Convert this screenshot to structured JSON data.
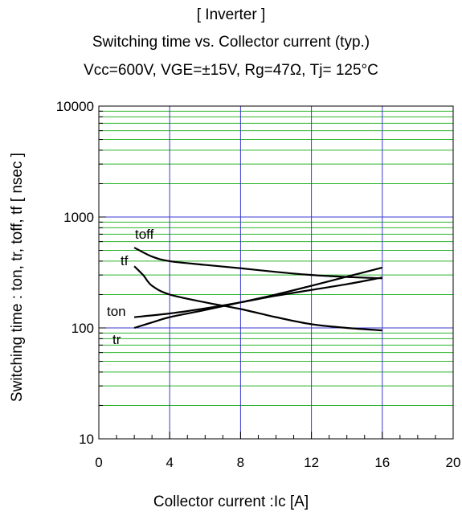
{
  "chart_data": {
    "type": "line",
    "header": "[ Inverter ]",
    "title": "Switching time  vs.  Collector current  (typ.)",
    "subtitle": "Vcc=600V, VGE=±15V, Rg=47Ω, Tj= 125°C",
    "xlabel": "Collector   current :Ic [A]",
    "ylabel": "Switching time  : ton, tr, toff, tf  [ nsec ]",
    "xlim": [
      0,
      20
    ],
    "ylim": [
      10,
      10000
    ],
    "yscale": "log",
    "grid": true,
    "xticks": [
      0,
      4,
      8,
      12,
      16,
      20
    ],
    "xtick_labels": [
      "0",
      "4",
      "8",
      "12",
      "16",
      "20"
    ],
    "yticks": [
      10,
      100,
      1000,
      10000
    ],
    "ytick_labels": [
      "10",
      "100",
      "1000",
      "10000"
    ],
    "series": [
      {
        "name": "toff",
        "x": [
          2,
          3,
          4,
          6,
          8,
          10,
          12,
          14,
          16
        ],
        "y": [
          530,
          440,
          400,
          370,
          345,
          320,
          300,
          288,
          280
        ]
      },
      {
        "name": "tf",
        "x": [
          2,
          2.5,
          3,
          4,
          6,
          8,
          10,
          12,
          14,
          16
        ],
        "y": [
          360,
          300,
          240,
          200,
          170,
          148,
          125,
          108,
          100,
          95
        ]
      },
      {
        "name": "ton",
        "x": [
          2,
          4,
          6,
          8,
          10,
          12,
          14,
          16
        ],
        "y": [
          125,
          135,
          150,
          170,
          195,
          220,
          248,
          285
        ]
      },
      {
        "name": "tr",
        "x": [
          2,
          3,
          4,
          6,
          8,
          10,
          12,
          14,
          16
        ],
        "y": [
          100,
          112,
          125,
          145,
          170,
          200,
          240,
          290,
          350
        ]
      }
    ]
  }
}
